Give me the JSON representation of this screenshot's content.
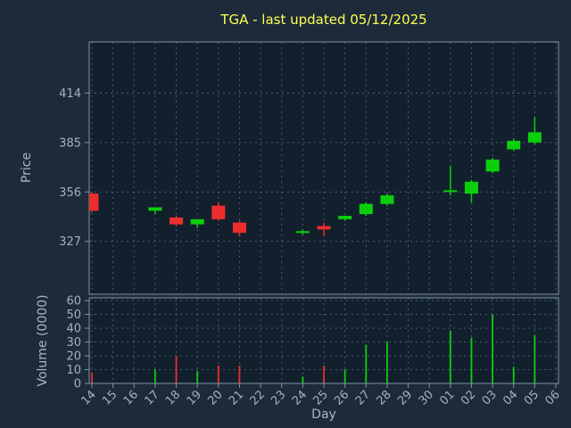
{
  "figure": {
    "title": "TGA - last updated 05/12/2025",
    "xlabel": "Day",
    "price_ylabel": "Price",
    "volume_ylabel": "Volume (0000)"
  },
  "colors": {
    "figure_bg": "#1d2a3a",
    "axes_bg": "#12202e",
    "title": "#ffff4f",
    "label": "#a6b7c9",
    "tick": "#a0b2c4",
    "grid": "#4f6478",
    "spine": "#7e93a8",
    "up": "#0ccf0c",
    "down": "#ed2d2d"
  },
  "chart_data": {
    "type": "candlestick",
    "title": "TGA - last updated 05/12/2025",
    "xlabel": "Day",
    "categories": [
      "14",
      "15",
      "16",
      "17",
      "18",
      "19",
      "20",
      "21",
      "22",
      "23",
      "24",
      "25",
      "26",
      "27",
      "28",
      "29",
      "30",
      "01",
      "02",
      "03",
      "04",
      "05",
      "06"
    ],
    "price_axis": {
      "label": "Price",
      "ticks": [
        327,
        356,
        385,
        414
      ],
      "lim": [
        296,
        444
      ]
    },
    "volume_axis": {
      "label": "Volume (0000)",
      "ticks": [
        0,
        10,
        20,
        30,
        40,
        50,
        60
      ],
      "lim": [
        0,
        62
      ]
    },
    "grid": true,
    "legend": false,
    "candles": [
      {
        "day": "14",
        "open": 355,
        "high": 356,
        "low": 344,
        "close": 345,
        "volume": 8
      },
      {
        "day": "17",
        "open": 345,
        "high": 347,
        "low": 343,
        "close": 347,
        "volume": 10
      },
      {
        "day": "18",
        "open": 341,
        "high": 342,
        "low": 336,
        "close": 337,
        "volume": 20
      },
      {
        "day": "19",
        "open": 337,
        "high": 340,
        "low": 335,
        "close": 340,
        "volume": 9
      },
      {
        "day": "20",
        "open": 348,
        "high": 350,
        "low": 339,
        "close": 340,
        "volume": 13
      },
      {
        "day": "21",
        "open": 338,
        "high": 339,
        "low": 330,
        "close": 332,
        "volume": 13
      },
      {
        "day": "24",
        "open": 332,
        "high": 334,
        "low": 331,
        "close": 333,
        "volume": 5
      },
      {
        "day": "25",
        "open": 336,
        "high": 338,
        "low": 330,
        "close": 334,
        "volume": 13
      },
      {
        "day": "26",
        "open": 340,
        "high": 342,
        "low": 339,
        "close": 342,
        "volume": 10
      },
      {
        "day": "27",
        "open": 343,
        "high": 350,
        "low": 342,
        "close": 349,
        "volume": 28
      },
      {
        "day": "28",
        "open": 349,
        "high": 355,
        "low": 348,
        "close": 354,
        "volume": 30
      },
      {
        "day": "01",
        "open": 356,
        "high": 371,
        "low": 354,
        "close": 357,
        "volume": 38
      },
      {
        "day": "02",
        "open": 355,
        "high": 363,
        "low": 350,
        "close": 362,
        "volume": 33
      },
      {
        "day": "03",
        "open": 368,
        "high": 376,
        "low": 367,
        "close": 375,
        "volume": 50
      },
      {
        "day": "04",
        "open": 381,
        "high": 387,
        "low": 380,
        "close": 386,
        "volume": 12
      },
      {
        "day": "05",
        "open": 385,
        "high": 400,
        "low": 384,
        "close": 391,
        "volume": 35
      }
    ]
  }
}
